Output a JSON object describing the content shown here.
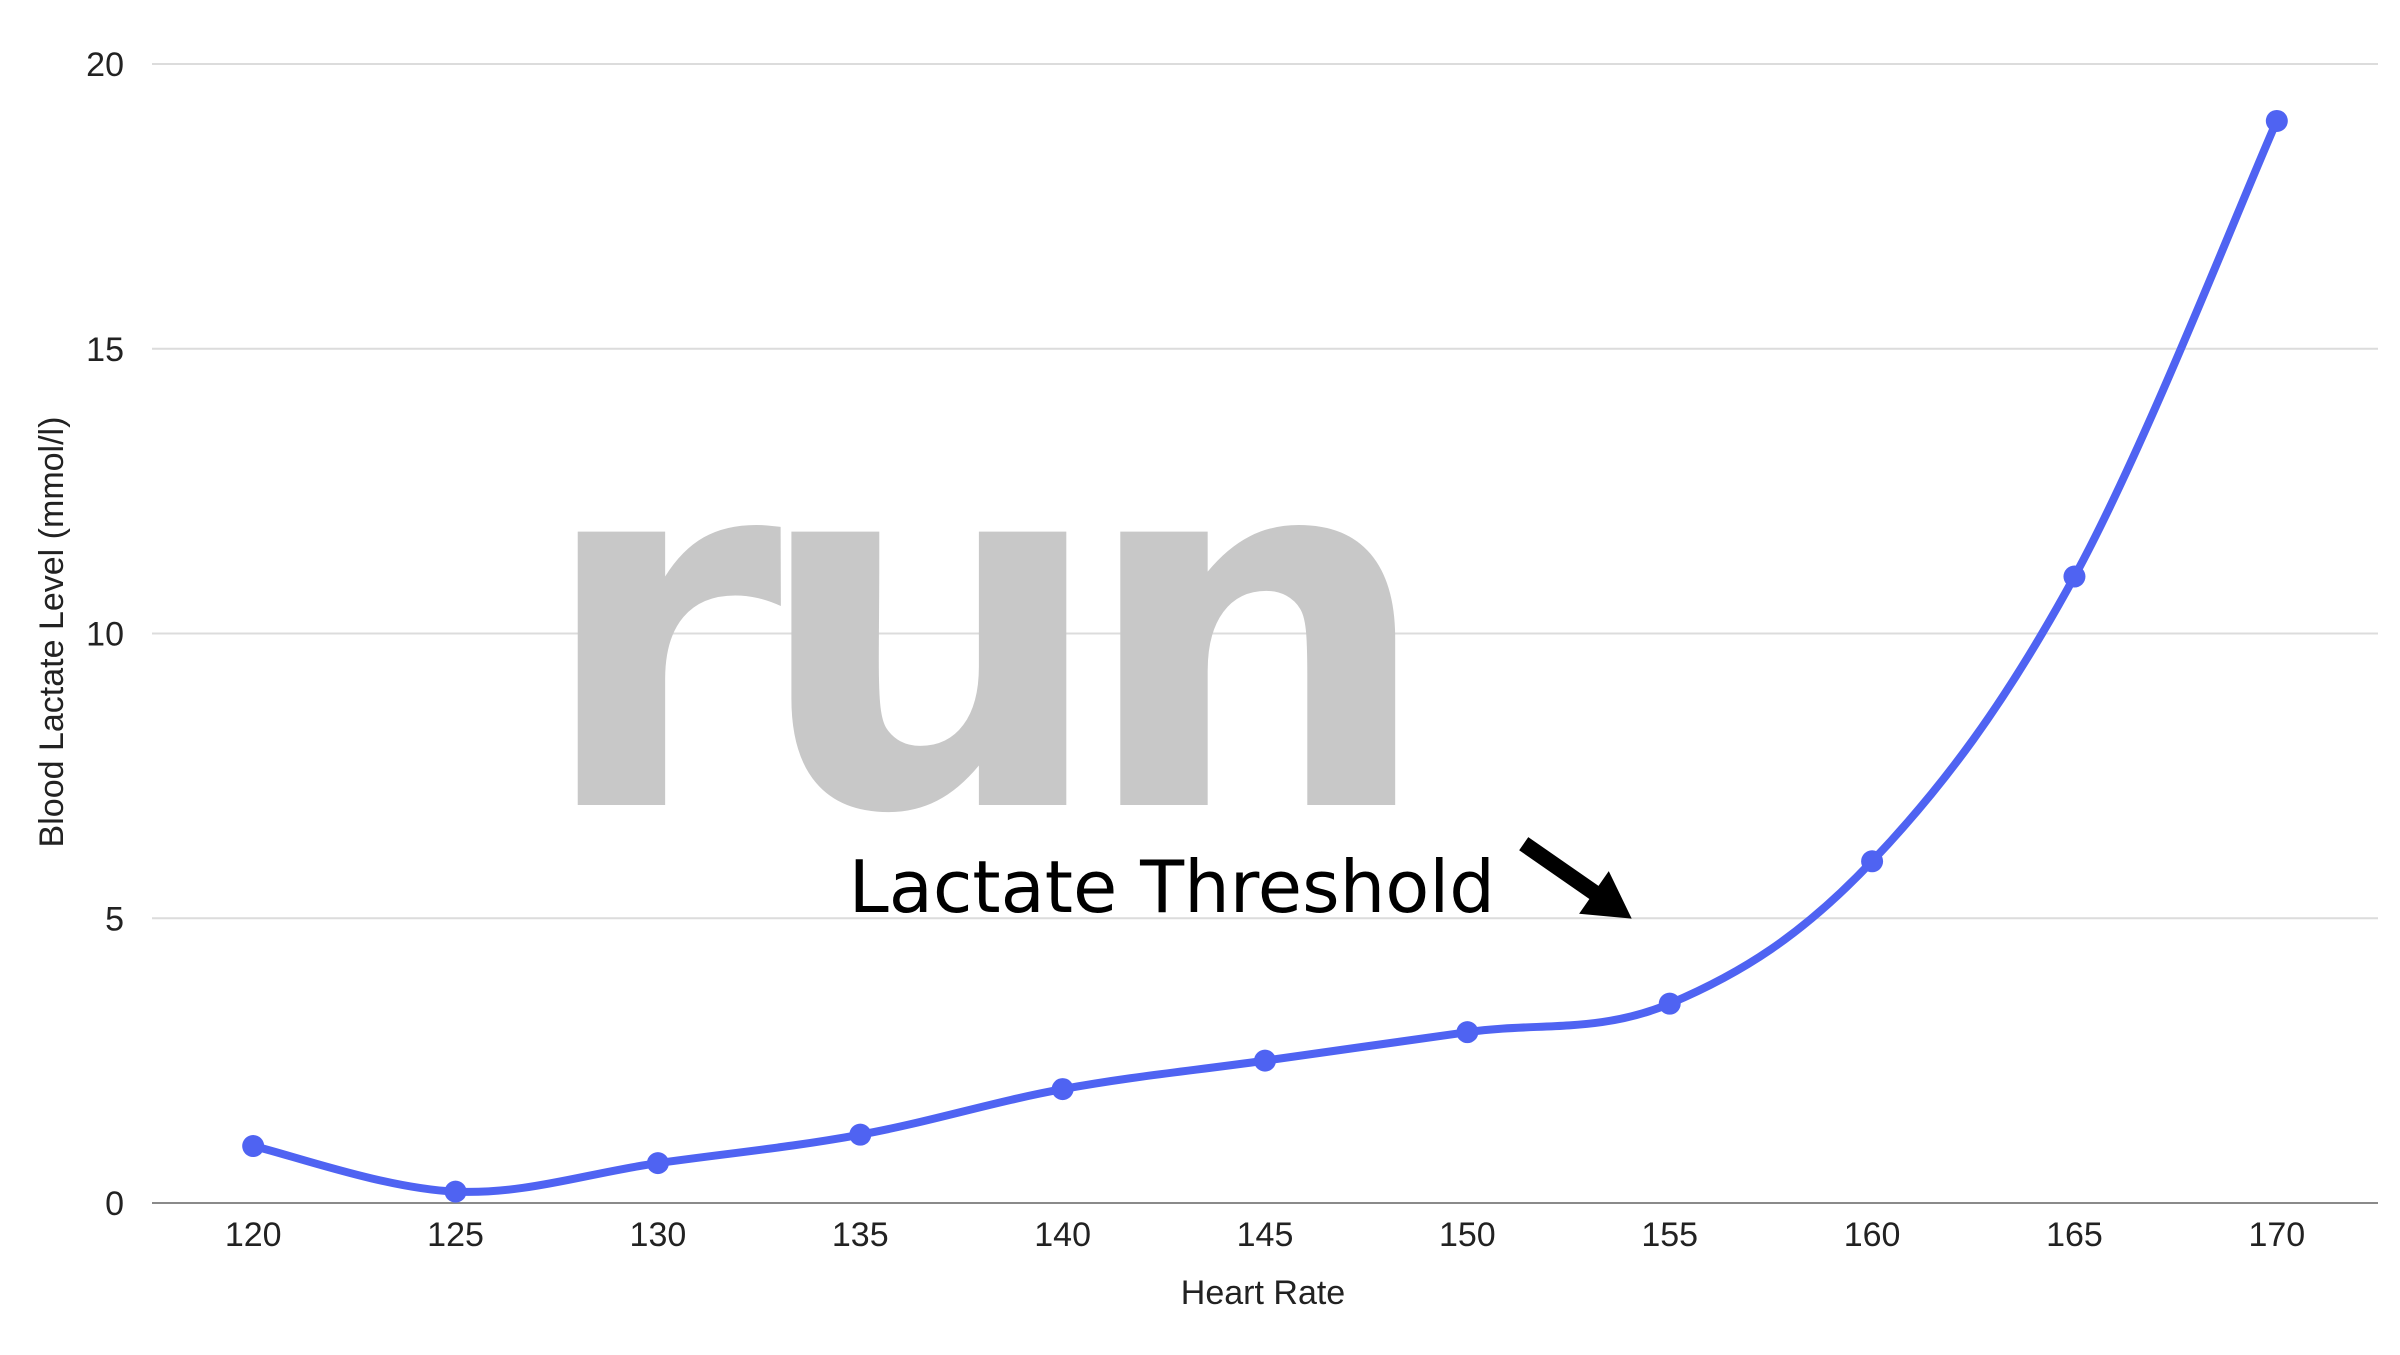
{
  "chart_data": {
    "type": "line",
    "title": "",
    "xlabel": "Heart Rate",
    "ylabel": "Blood Lactate Level (mmol/l)",
    "x": [
      120,
      125,
      130,
      135,
      140,
      145,
      150,
      155,
      160,
      165,
      170
    ],
    "series": [
      {
        "values": [
          1,
          0.2,
          0.7,
          1.2,
          2,
          2.5,
          3,
          3.5,
          6,
          11,
          19
        ]
      }
    ],
    "xticks": [
      "120",
      "125",
      "130",
      "135",
      "140",
      "145",
      "150",
      "155",
      "160",
      "165",
      "170"
    ],
    "yticks": [
      "0",
      "5",
      "10",
      "15",
      "20"
    ],
    "ylim": [
      0,
      20
    ],
    "xlim": [
      117.5,
      172.5
    ],
    "grid": true,
    "smooth": true,
    "line_color": "#4f63f2",
    "annotation": {
      "text": "Lactate Threshold",
      "target_x": 155,
      "target_y": 3.5
    },
    "watermark": "run"
  }
}
